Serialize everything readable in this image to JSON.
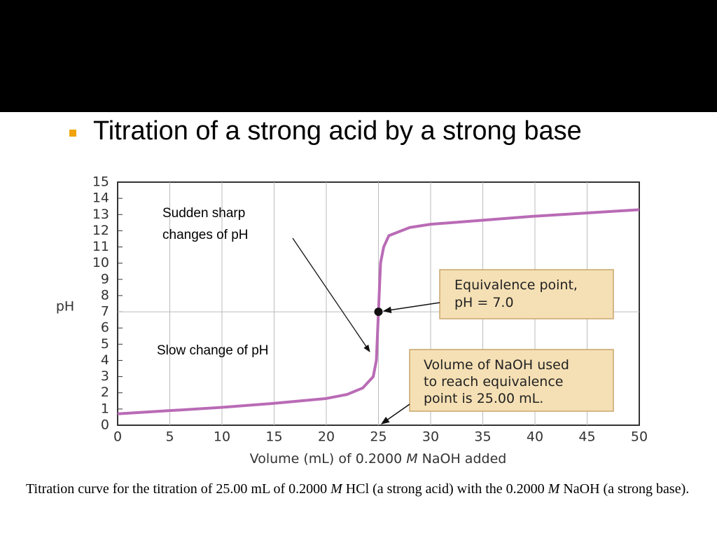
{
  "slide": {
    "title": "Titration of a strong acid by a strong base"
  },
  "chart_data": {
    "type": "line",
    "y_label": "pH",
    "x_label": [
      "Volume (mL) of 0.2000 ",
      "M",
      " NaOH added"
    ],
    "xlim": [
      0,
      50
    ],
    "ylim": [
      0,
      15
    ],
    "xticks": [
      0,
      5,
      10,
      15,
      20,
      25,
      30,
      35,
      40,
      45,
      50
    ],
    "yticks": [
      0,
      1,
      2,
      3,
      4,
      5,
      6,
      7,
      8,
      9,
      10,
      11,
      12,
      13,
      14,
      15
    ],
    "grid": "x",
    "reference_y": 7,
    "series": [
      {
        "color": "#b96bb5",
        "x": [
          0,
          5,
          10,
          15,
          20,
          22,
          23.5,
          24.5,
          24.8,
          25,
          25.2,
          25.5,
          26,
          28,
          30,
          35,
          40,
          45,
          50
        ],
        "values": [
          0.7,
          0.9,
          1.1,
          1.35,
          1.65,
          1.9,
          2.3,
          3.0,
          4.0,
          7.0,
          10.0,
          11.0,
          11.7,
          12.2,
          12.4,
          12.65,
          12.9,
          13.1,
          13.3
        ]
      }
    ],
    "point": {
      "x": 25,
      "y": 7
    },
    "annotations": {
      "sudden": [
        "Sudden sharp",
        "changes of pH"
      ],
      "slow": "Slow change of pH",
      "equivalence": [
        "Equivalence point,",
        "pH = 7.0"
      ],
      "volume": [
        "Volume of NaOH used",
        "to reach equivalence",
        "point is 25.00 mL."
      ]
    }
  },
  "caption": [
    "Titration curve for the titration of 25.00 mL of 0.2000 ",
    "M",
    " HCl (a strong acid) with the 0.2000 ",
    "M",
    " NaOH (a strong base)."
  ]
}
